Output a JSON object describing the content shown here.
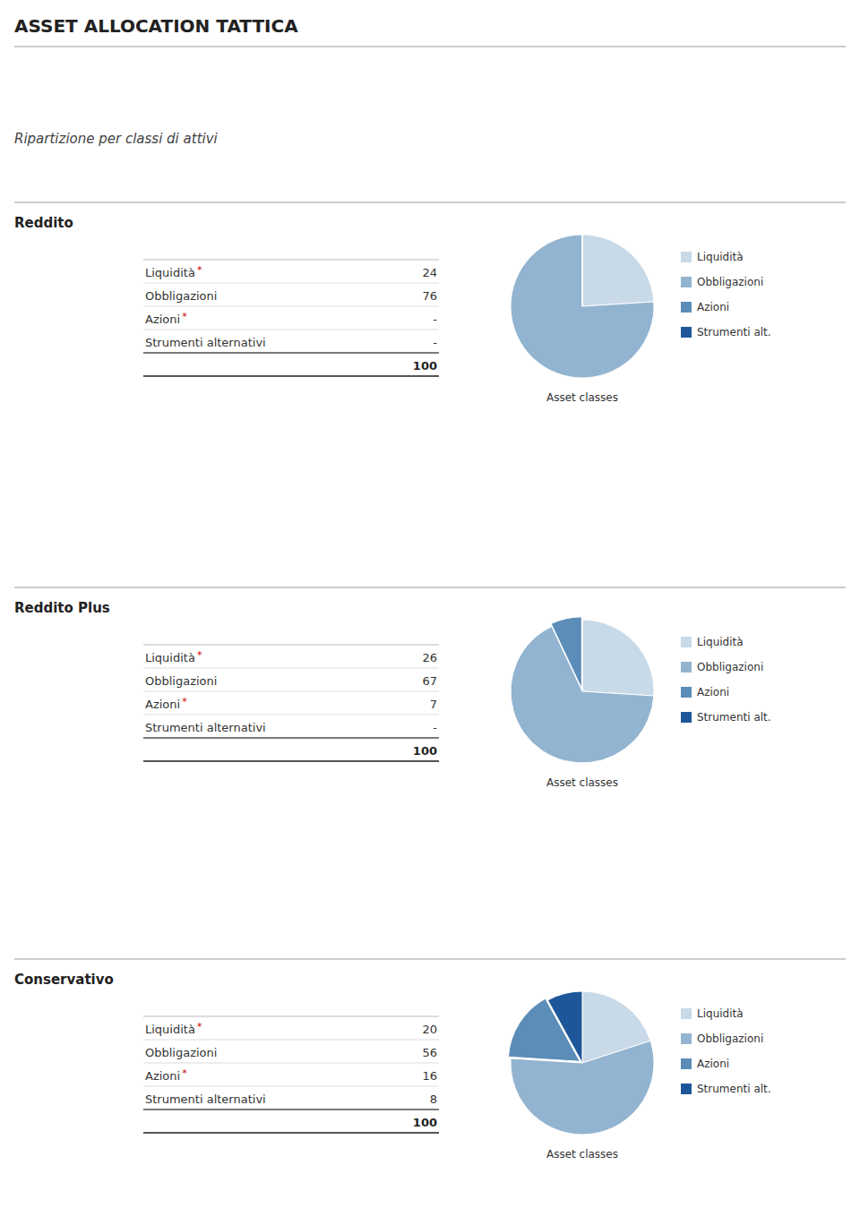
{
  "title": "ASSET ALLOCATION TATTICA",
  "subtitle": "Ripartizione per classi di attivi",
  "chart_data": [
    {
      "type": "pie",
      "title": "Reddito",
      "categories": [
        "Liquidità",
        "Obbligazioni",
        "Azioni",
        "Strumenti alt."
      ],
      "values": [
        24,
        76,
        0,
        0
      ],
      "value_labels": [
        "24",
        "76",
        "-",
        "-"
      ],
      "colors": [
        "#c8d9e8",
        "#92b4d0",
        "#5b8db8",
        "#1e5799"
      ],
      "row_labels": [
        "Liquidità",
        "Obbligazioni",
        "Azioni",
        "Strumenti alternativi"
      ],
      "starred": [
        true,
        false,
        true,
        false
      ],
      "star_label": "*",
      "total": 100,
      "annotations": [
        "Asset classes"
      ],
      "legend": "right"
    },
    {
      "type": "pie",
      "title": "Reddito Plus",
      "categories": [
        "Liquidità",
        "Obbligazioni",
        "Azioni",
        "Strumenti alt."
      ],
      "values": [
        26,
        67,
        7,
        0
      ],
      "value_labels": [
        "26",
        "67",
        "7",
        "-"
      ],
      "colors": [
        "#c8d9e8",
        "#92b4d0",
        "#5b8db8",
        "#1e5799"
      ],
      "row_labels": [
        "Liquidità",
        "Obbligazioni",
        "Azioni",
        "Strumenti alternativi"
      ],
      "starred": [
        true,
        false,
        true,
        false
      ],
      "star_label": "*",
      "total": 100,
      "annotations": [
        "Asset classes"
      ],
      "legend": "right"
    },
    {
      "type": "pie",
      "title": "Conservativo",
      "categories": [
        "Liquidità",
        "Obbligazioni",
        "Azioni",
        "Strumenti alt."
      ],
      "values": [
        20,
        56,
        16,
        8
      ],
      "value_labels": [
        "20",
        "56",
        "16",
        "8"
      ],
      "colors": [
        "#c8d9e8",
        "#92b4d0",
        "#5b8db8",
        "#1e5799"
      ],
      "row_labels": [
        "Liquidità",
        "Obbligazioni",
        "Azioni",
        "Strumenti alternativi"
      ],
      "starred": [
        true,
        false,
        true,
        false
      ],
      "star_label": "*",
      "total": 100,
      "annotations": [
        "Asset classes"
      ],
      "legend": "right"
    }
  ]
}
